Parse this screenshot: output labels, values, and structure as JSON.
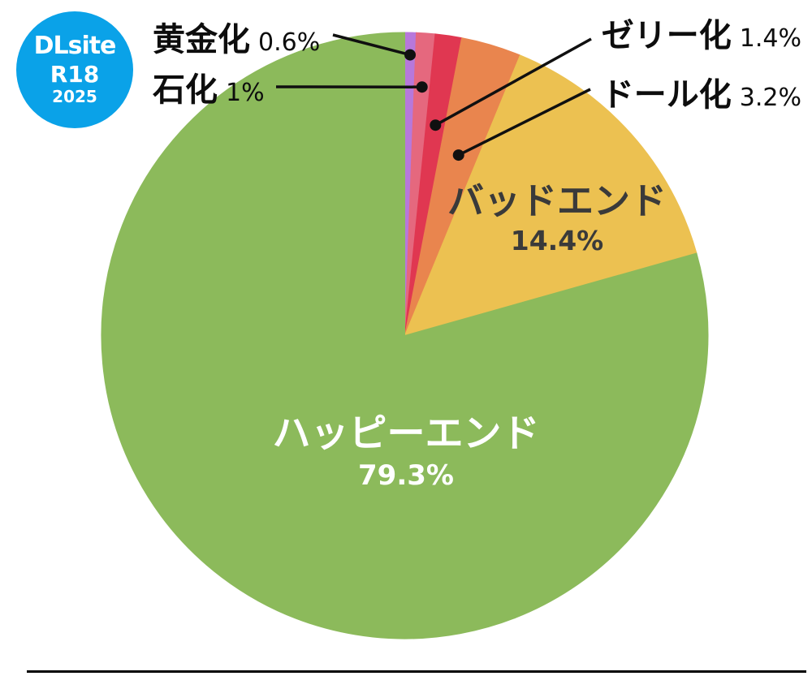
{
  "logo": {
    "brand": "DLsite",
    "rating": "R18",
    "year": "2025",
    "bg_color": "#0aa2e8",
    "text_color": "#ffffff"
  },
  "chart_data": {
    "type": "pie",
    "title": "",
    "start_angle_deg": 0,
    "direction": "clockwise",
    "legend_position": "callouts-and-inside",
    "callout_line_color": "#101010",
    "segments": [
      {
        "id": "gold",
        "label": "黄金化",
        "value": 0.6,
        "display": "0.6%",
        "color": "#b778db",
        "label_style": "callout"
      },
      {
        "id": "stone",
        "label": "石化",
        "value": 1.0,
        "display": "1%",
        "color": "#e5687e",
        "label_style": "callout"
      },
      {
        "id": "jelly",
        "label": "ゼリー化",
        "value": 1.4,
        "display": "1.4%",
        "color": "#e03751",
        "label_style": "callout"
      },
      {
        "id": "doll",
        "label": "ドール化",
        "value": 3.2,
        "display": "3.2%",
        "color": "#e9854e",
        "label_style": "callout"
      },
      {
        "id": "bad-end",
        "label": "バッドエンド",
        "value": 14.4,
        "display": "14.4%",
        "color": "#ecc151",
        "text_color": "#3a3a3a",
        "label_style": "inside"
      },
      {
        "id": "happy-end",
        "label": "ハッピーエンド",
        "value": 79.3,
        "display": "79.3%",
        "color": "#8cba5b",
        "text_color": "#ffffff",
        "label_style": "inside"
      }
    ]
  }
}
